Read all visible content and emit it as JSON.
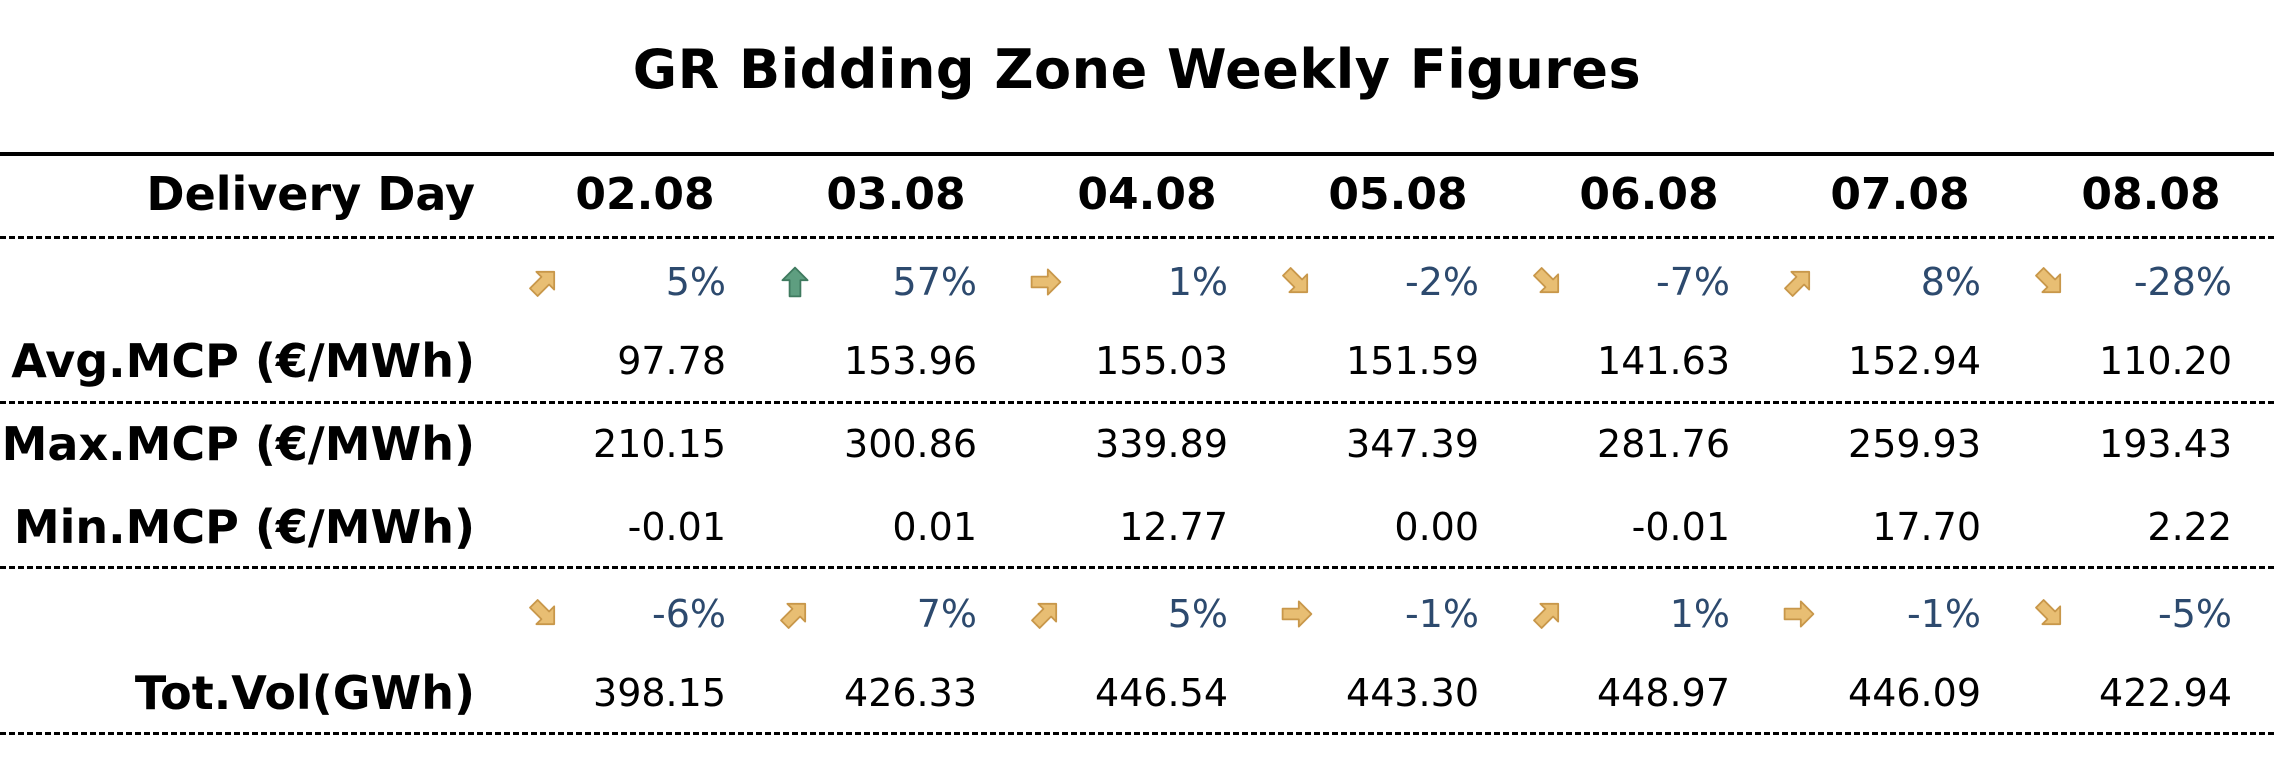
{
  "title": "GR Bidding Zone Weekly Figures",
  "header_label": "Delivery Day",
  "dates": [
    "02.08",
    "03.08",
    "04.08",
    "05.08",
    "06.08",
    "07.08",
    "08.08"
  ],
  "mcp_change": {
    "pcts": [
      "5%",
      "57%",
      "1%",
      "-2%",
      "-7%",
      "8%",
      "-28%"
    ],
    "icons": [
      "arrow-up-right-icon",
      "arrow-up-icon",
      "arrow-right-icon",
      "arrow-down-right-icon",
      "arrow-down-right-icon",
      "arrow-up-right-icon",
      "arrow-down-right-icon"
    ]
  },
  "avg_mcp": {
    "label": "Avg.MCP (€/MWh)",
    "values": [
      "97.78",
      "153.96",
      "155.03",
      "151.59",
      "141.63",
      "152.94",
      "110.20"
    ]
  },
  "max_mcp": {
    "label": "Max.MCP (€/MWh)",
    "values": [
      "210.15",
      "300.86",
      "339.89",
      "347.39",
      "281.76",
      "259.93",
      "193.43"
    ]
  },
  "min_mcp": {
    "label": "Min.MCP (€/MWh)",
    "values": [
      "-0.01",
      "0.01",
      "12.77",
      "0.00",
      "-0.01",
      "17.70",
      "2.22"
    ]
  },
  "vol_change": {
    "pcts": [
      "-6%",
      "7%",
      "5%",
      "-1%",
      "1%",
      "-1%",
      "-5%"
    ],
    "icons": [
      "arrow-down-right-icon",
      "arrow-up-right-icon",
      "arrow-up-right-icon",
      "arrow-right-icon",
      "arrow-up-right-icon",
      "arrow-right-icon",
      "arrow-down-right-icon"
    ]
  },
  "tot_vol": {
    "label": "Tot.Vol(GWh)",
    "values": [
      "398.15",
      "426.33",
      "446.54",
      "443.30",
      "448.97",
      "446.09",
      "422.94"
    ]
  },
  "colors": {
    "arrow_gold": "#e8be73",
    "arrow_gold_stroke": "#c8974a",
    "arrow_green": "#5e9e80",
    "arrow_green_stroke": "#3f7a5f",
    "pct_text": "#2d4a6e"
  }
}
